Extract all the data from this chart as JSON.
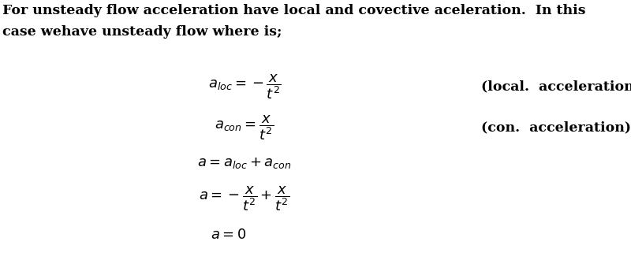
{
  "text_line1": "For unsteady flow acceleration have local and covective aceleration.  In this",
  "text_line2": "case wehave unsteady flow where is;",
  "eq1_lhs": "$a_{loc} = -\\dfrac{x}{t^2}$",
  "eq1_rhs": "(local.  acceleration)",
  "eq2_lhs": "$a_{con} = \\dfrac{x}{t^2}$",
  "eq2_rhs": "(con.  acceleration)",
  "eq3": "$a = a_{loc} + a_{con}$",
  "eq4": "$a = -\\dfrac{x}{t^2} + \\dfrac{x}{t^2}$",
  "eq5": "$a = 0$",
  "font_size_text": 12.5,
  "font_size_eq": 13,
  "bg_color": "#ffffff",
  "text_color": "#000000",
  "fig_width": 8.0,
  "fig_height": 3.25,
  "dpi": 100
}
